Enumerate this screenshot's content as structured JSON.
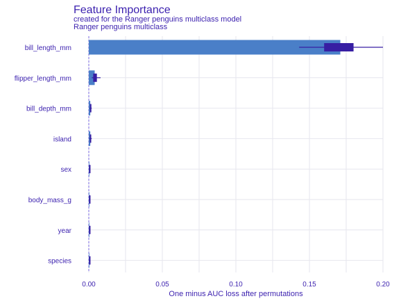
{
  "chart_data": {
    "type": "bar",
    "title": "Feature Importance",
    "subtitle": [
      "created for the Ranger penguins multiclass model",
      "Ranger penguins multiclass"
    ],
    "xlabel": "One minus AUC loss after permutations",
    "ylabel": "",
    "xlim": [
      0.0,
      0.2
    ],
    "xticks": [
      "0.00",
      "0.05",
      "0.10",
      "0.15",
      "0.20"
    ],
    "grid": true,
    "categories": [
      "bill_length_mm",
      "flipper_length_mm",
      "bill_depth_mm",
      "island",
      "sex",
      "body_mass_g",
      "year",
      "species"
    ],
    "values": [
      0.171,
      0.004,
      0.001,
      0.001,
      0.0,
      0.0,
      0.0,
      0.0
    ],
    "boxplot": [
      {
        "min": 0.143,
        "q1": 0.16,
        "q3": 0.18,
        "max": 0.2
      },
      {
        "min": 0.002,
        "q1": 0.003,
        "q3": 0.0055,
        "max": 0.008
      },
      {
        "min": 0.0005,
        "q1": 0.0008,
        "q3": 0.0015,
        "max": 0.002
      },
      {
        "min": 0.0003,
        "q1": 0.0007,
        "q3": 0.0013,
        "max": 0.002
      },
      {
        "min": 0.0,
        "q1": 0.0002,
        "q3": 0.0006,
        "max": 0.001
      },
      {
        "min": 0.0,
        "q1": 0.0002,
        "q3": 0.0006,
        "max": 0.001
      },
      {
        "min": 0.0,
        "q1": 0.0002,
        "q3": 0.0006,
        "max": 0.001
      },
      {
        "min": 0.0,
        "q1": 0.0002,
        "q3": 0.0006,
        "max": 0.001
      }
    ],
    "colors": {
      "bar": "#4a7fc8",
      "box": "#371ea3",
      "text": "#3a1fae"
    }
  }
}
